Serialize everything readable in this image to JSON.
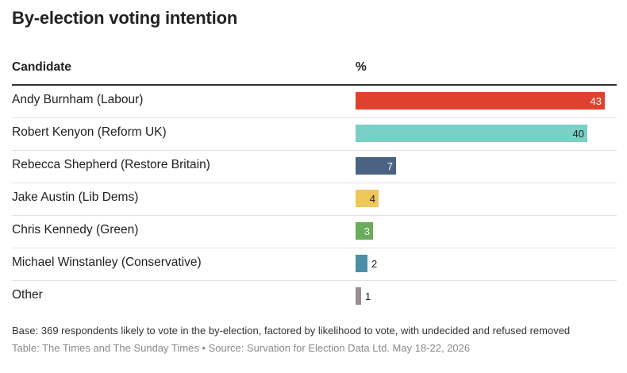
{
  "title": "By-election voting intention",
  "table_header": {
    "candidate": "Candidate",
    "percent": "%"
  },
  "chart_data": {
    "type": "bar",
    "orientation": "horizontal",
    "categories": [
      "Andy Burnham (Labour)",
      "Robert Kenyon (Reform UK)",
      "Rebecca Shepherd (Restore Britain)",
      "Jake Austin (Lib Dems)",
      "Chris Kennedy (Green)",
      "Michael Winstanley (Conservative)",
      "Other"
    ],
    "values": [
      43,
      40,
      7,
      4,
      3,
      2,
      1
    ],
    "colors": [
      "#e0412e",
      "#78d0c6",
      "#4a6383",
      "#efc65a",
      "#6aac5b",
      "#4a8fa6",
      "#9b8e8e"
    ],
    "label_colors": [
      "#ffffff",
      "#222222",
      "#ffffff",
      "#222222",
      "#ffffff",
      "#222222",
      "#222222"
    ],
    "xlim": [
      0,
      45
    ],
    "grid": false,
    "legend": "none"
  },
  "footer": {
    "base": "Base: 369 respondents likely to vote in the by-election, factored by likelihood to vote, with undecided and refused removed",
    "source": "Table: The Times and The Sunday Times • Source: Survation for Election Data Ltd. May 18-22, 2026"
  }
}
